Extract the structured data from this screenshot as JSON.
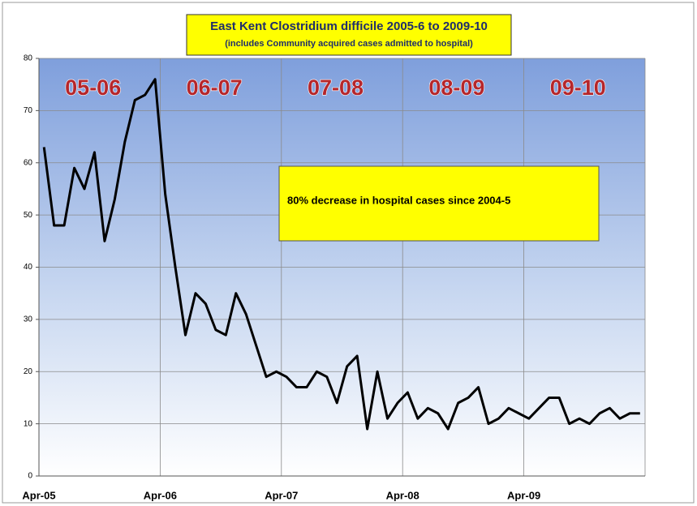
{
  "chart_data": {
    "type": "line",
    "title": "East Kent Clostridium difficile 2005-6 to 2009-10",
    "subtitle": "(includes Community acquired cases admitted to hospital)",
    "categories": [
      "Apr-05",
      null,
      null,
      null,
      null,
      null,
      null,
      null,
      null,
      null,
      null,
      null,
      "Apr-06",
      null,
      null,
      null,
      null,
      null,
      null,
      null,
      null,
      null,
      null,
      null,
      "Apr-07",
      null,
      null,
      null,
      null,
      null,
      null,
      null,
      null,
      null,
      null,
      null,
      "Apr-08",
      null,
      null,
      null,
      null,
      null,
      null,
      null,
      null,
      null,
      null,
      null,
      "Apr-09",
      null,
      null,
      null,
      null,
      null,
      null,
      null,
      null,
      null,
      null,
      null
    ],
    "series": [
      {
        "color": "#000000",
        "values": [
          63,
          48,
          48,
          59,
          55,
          62,
          45,
          53,
          64,
          72,
          73,
          76,
          54,
          40,
          27,
          35,
          33,
          28,
          27,
          35,
          31,
          25,
          19,
          20,
          19,
          17,
          17,
          20,
          19,
          14,
          21,
          23,
          9,
          20,
          11,
          14,
          16,
          11,
          13,
          12,
          9,
          14,
          15,
          17,
          10,
          11,
          13,
          12,
          11,
          13,
          15,
          15,
          10,
          11,
          10,
          12,
          13,
          11,
          12,
          12
        ]
      }
    ],
    "ylim": [
      0,
      80
    ],
    "yticks": [
      0,
      10,
      20,
      30,
      40,
      50,
      60,
      70,
      80
    ],
    "grid": true,
    "period_labels": [
      "05-06",
      "06-07",
      "07-08",
      "08-09",
      "09-10"
    ],
    "annotation": "80% decrease in hospital cases since 2004-5"
  }
}
